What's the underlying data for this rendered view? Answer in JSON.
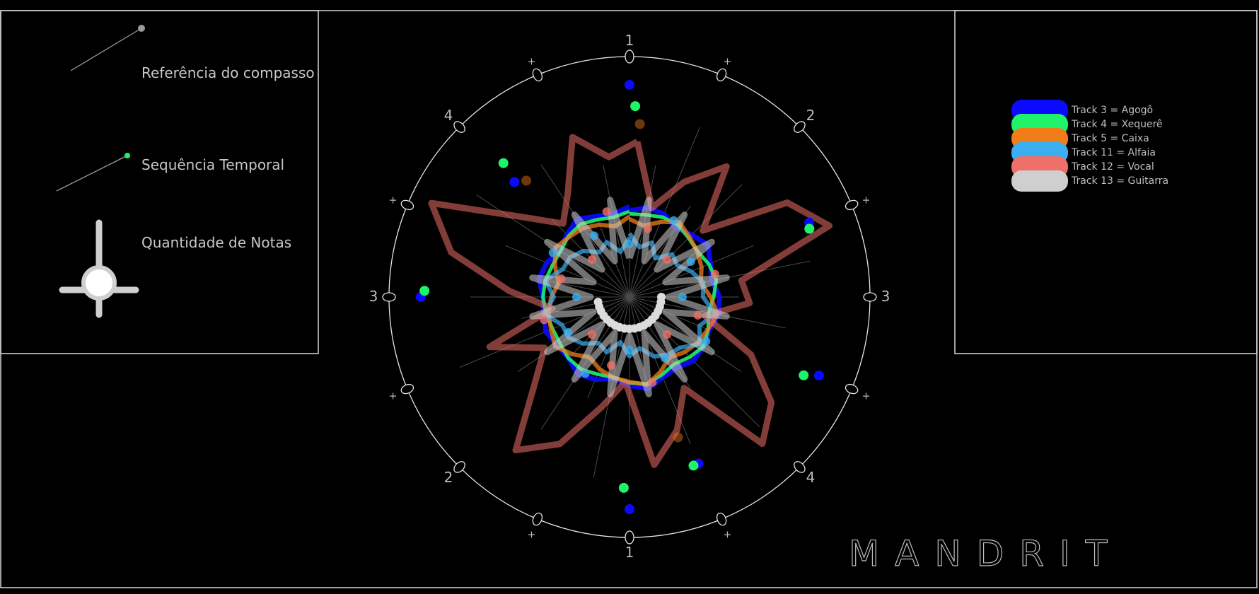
{
  "left_legend": {
    "measure_reference": "Referência do compasso",
    "time_sequence": "Sequência Temporal",
    "note_count": "Quantidade de Notas"
  },
  "dial": {
    "beat_labels": [
      "1",
      "+",
      "2",
      "+",
      "3",
      "+",
      "4",
      "+",
      "1",
      "+",
      "2",
      "+",
      "3",
      "+",
      "4",
      "+"
    ],
    "colors": {
      "ring": "#e6e6e6",
      "spoke": "#4a4a4a"
    }
  },
  "tracks": [
    {
      "label": "Track 3 = Agogô",
      "color": "#0a0aff"
    },
    {
      "label": "Track 4 = Xequerê",
      "color": "#1ef36a"
    },
    {
      "label": "Track 5 = Caixa",
      "color": "#f07d1a"
    },
    {
      "label": "Track 11 = Alfaia",
      "color": "#3aaef0"
    },
    {
      "label": "Track 12 = Vocal",
      "color": "#ef7068"
    },
    {
      "label": "Track 13 = Guitarra",
      "color": "#cfcfcf"
    }
  ],
  "brand": "MANDRIT"
}
